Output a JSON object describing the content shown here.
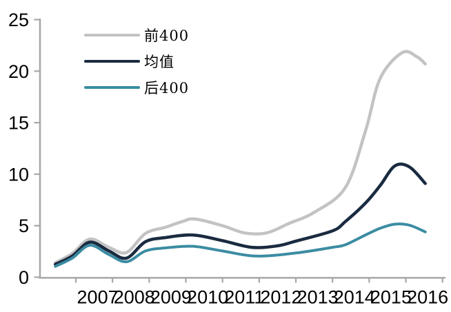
{
  "chart_data": {
    "type": "line",
    "title": "",
    "xlabel": "",
    "ylabel": "",
    "grid": false,
    "legend_position": "top-left",
    "x_axis": {
      "tick_years": [
        2006.5,
        2007.5,
        2008.5,
        2009.5,
        2010.5,
        2011.5,
        2012.5,
        2013.5,
        2014.5,
        2015.5,
        2016.5
      ],
      "labels": [
        "2007",
        "2008",
        "2009",
        "2010",
        "2011",
        "2012",
        "2013",
        "2014",
        "2015",
        "2016"
      ],
      "label_years": [
        2007,
        2008,
        2009,
        2010,
        2011,
        2012,
        2013,
        2014,
        2015,
        2016
      ],
      "range": [
        2005.6,
        2016.6
      ]
    },
    "y_axis": {
      "tick_values": [
        0,
        5,
        10,
        15,
        20,
        25
      ],
      "tick_labels": [
        "0",
        "5",
        "10",
        "15",
        "20",
        "25"
      ],
      "range": [
        0,
        25
      ]
    },
    "series": [
      {
        "name": "前400",
        "color": "#c3c3c3",
        "points": [
          [
            2005.94,
            1.4
          ],
          [
            2006.4,
            2.3
          ],
          [
            2006.88,
            3.7
          ],
          [
            2007.4,
            2.9
          ],
          [
            2007.88,
            2.4
          ],
          [
            2008.4,
            4.25
          ],
          [
            2008.95,
            4.85
          ],
          [
            2009.4,
            5.4
          ],
          [
            2009.75,
            5.65
          ],
          [
            2010.5,
            5.0
          ],
          [
            2011.1,
            4.3
          ],
          [
            2011.7,
            4.3
          ],
          [
            2012.3,
            5.2
          ],
          [
            2013.0,
            6.3
          ],
          [
            2013.85,
            8.7
          ],
          [
            2014.4,
            14.2
          ],
          [
            2014.8,
            19.3
          ],
          [
            2015.4,
            21.8
          ],
          [
            2015.8,
            21.4
          ],
          [
            2016.03,
            20.7
          ]
        ]
      },
      {
        "name": "均值",
        "color": "#1a2b40",
        "points": [
          [
            2005.94,
            1.25
          ],
          [
            2006.4,
            2.05
          ],
          [
            2006.88,
            3.4
          ],
          [
            2007.4,
            2.55
          ],
          [
            2007.88,
            1.85
          ],
          [
            2008.4,
            3.45
          ],
          [
            2008.95,
            3.85
          ],
          [
            2009.7,
            4.1
          ],
          [
            2010.5,
            3.55
          ],
          [
            2011.3,
            2.9
          ],
          [
            2012.0,
            3.05
          ],
          [
            2012.5,
            3.5
          ],
          [
            2013.5,
            4.5
          ],
          [
            2013.85,
            5.4
          ],
          [
            2014.4,
            7.2
          ],
          [
            2014.8,
            8.9
          ],
          [
            2015.2,
            10.8
          ],
          [
            2015.6,
            10.7
          ],
          [
            2016.03,
            9.1
          ]
        ]
      },
      {
        "name": "后400",
        "color": "#3b8ca2",
        "points": [
          [
            2005.94,
            1.05
          ],
          [
            2006.4,
            1.85
          ],
          [
            2006.88,
            3.1
          ],
          [
            2007.4,
            2.2
          ],
          [
            2007.88,
            1.5
          ],
          [
            2008.4,
            2.55
          ],
          [
            2008.95,
            2.85
          ],
          [
            2009.7,
            3.0
          ],
          [
            2010.5,
            2.55
          ],
          [
            2011.4,
            2.05
          ],
          [
            2012.5,
            2.35
          ],
          [
            2013.5,
            2.9
          ],
          [
            2013.85,
            3.15
          ],
          [
            2014.4,
            4.1
          ],
          [
            2014.8,
            4.75
          ],
          [
            2015.2,
            5.15
          ],
          [
            2015.6,
            5.05
          ],
          [
            2016.03,
            4.4
          ]
        ]
      }
    ]
  },
  "colors": {
    "axis": "#a6a6a6",
    "tick_text": "#000000",
    "background": "#ffffff"
  }
}
